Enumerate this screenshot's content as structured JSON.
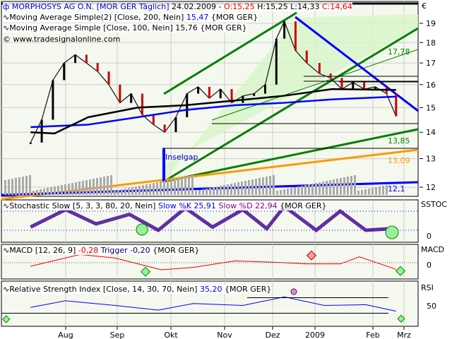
{
  "header": {
    "symbol": "MORPHOSYS AG O.N.",
    "feed": "[MOR GER  Täglich]",
    "date": "24.02.2009",
    "open": "O:15,25",
    "high": "H:15,25",
    "low": "L:14,33",
    "close": "C:14,64",
    "dash": "-"
  },
  "legend": {
    "ma200": {
      "text": "Moving Average Simple(2) [Close, 200, Nein]",
      "value": "15,47",
      "feed": "{MOR GER}"
    },
    "ma100": {
      "text": "Moving Average Simple [Close, 100, Nein]",
      "value": "15,76",
      "feed": "{MOR GER}"
    },
    "copyright": "© www.tradesignalonline.com"
  },
  "annotations": {
    "inselgap": "Inselgap",
    "l1": "17,78",
    "l2": "13,85",
    "l3": "13,09",
    "l4": "12,1"
  },
  "panels": {
    "stoch": {
      "title": "Stochastic Slow [5, 3, 3, 80, 20, Nein]",
      "k": "Slow %K 25,91",
      "d": "Slow %D 22,94",
      "feed": "{MOR GER}",
      "axis": "SSTOC",
      "tick": "0"
    },
    "macd": {
      "title": "MACD [12, 26, 9]",
      "value": "-0,28",
      "trigger": "Trigger -0,20",
      "feed": "{MOR GER}",
      "axis": "MACD",
      "tick": "0"
    },
    "rsi": {
      "title": "Relative Strength Index [Close, 14, 30, 70, Nein]",
      "value": "35,20",
      "feed": "{MOR GER}",
      "axis": "RSI",
      "tick": "50"
    }
  },
  "colors": {
    "up": "#000000",
    "down": "#cc0000",
    "ma200": "#0000ff",
    "ma100": "#000000",
    "channel": "#008000",
    "support": "#ffa500",
    "bg": "#f5f8ee",
    "channelFill": "#d8f5c8"
  },
  "chart_data": {
    "type": "line",
    "currency": "€",
    "y_scale": "log",
    "ylim": [
      11.8,
      20
    ],
    "yticks": [
      "12",
      "13",
      "14",
      "15",
      "16",
      "17",
      "18",
      "19"
    ],
    "xticks": [
      "Aug",
      "Sep",
      "Okt",
      "Nov",
      "Dez",
      "2009",
      "Feb",
      "Mrz"
    ],
    "grid": true,
    "series": [
      {
        "key": "close",
        "points": [
          [
            "2008-07-10",
            13.6
          ],
          [
            "2008-07-17",
            14.5
          ],
          [
            "2008-07-24",
            16.2
          ],
          [
            "2008-07-31",
            17.0
          ],
          [
            "2008-08-07",
            17.4
          ],
          [
            "2008-08-14",
            17.0
          ],
          [
            "2008-08-21",
            16.6
          ],
          [
            "2008-08-28",
            16.0
          ],
          [
            "2008-09-04",
            15.2
          ],
          [
            "2008-09-11",
            15.6
          ],
          [
            "2008-09-18",
            14.7
          ],
          [
            "2008-09-25",
            14.3
          ],
          [
            "2008-10-02",
            14.0
          ],
          [
            "2008-10-09",
            14.6
          ],
          [
            "2008-10-16",
            15.6
          ],
          [
            "2008-10-23",
            15.9
          ],
          [
            "2008-10-30",
            15.4
          ],
          [
            "2008-11-06",
            15.8
          ],
          [
            "2008-11-13",
            15.2
          ],
          [
            "2008-11-20",
            15.5
          ],
          [
            "2008-11-27",
            15.6
          ],
          [
            "2008-12-04",
            16.0
          ],
          [
            "2008-12-11",
            18.2
          ],
          [
            "2008-12-16",
            19.1
          ],
          [
            "2008-12-23",
            17.6
          ],
          [
            "2008-12-30",
            17.0
          ],
          [
            "2009-01-07",
            16.5
          ],
          [
            "2009-01-14",
            16.3
          ],
          [
            "2009-01-21",
            15.8
          ],
          [
            "2009-01-28",
            16.1
          ],
          [
            "2009-02-04",
            15.8
          ],
          [
            "2009-02-11",
            15.9
          ],
          [
            "2009-02-18",
            15.6
          ],
          [
            "2009-02-24",
            14.64
          ]
        ]
      },
      {
        "key": "ma200",
        "points": [
          [
            "2008-07-10",
            14.2
          ],
          [
            "2008-08-15",
            14.3
          ],
          [
            "2008-09-15",
            14.6
          ],
          [
            "2008-10-15",
            14.9
          ],
          [
            "2008-11-15",
            15.1
          ],
          [
            "2008-12-15",
            15.2
          ],
          [
            "2009-01-15",
            15.35
          ],
          [
            "2009-02-24",
            15.47
          ]
        ]
      },
      {
        "key": "ma100",
        "points": [
          [
            "2008-07-10",
            14.0
          ],
          [
            "2008-07-25",
            13.95
          ],
          [
            "2008-08-15",
            14.6
          ],
          [
            "2008-09-15",
            15.0
          ],
          [
            "2008-10-15",
            15.1
          ],
          [
            "2008-11-15",
            15.3
          ],
          [
            "2008-12-15",
            15.5
          ],
          [
            "2009-01-15",
            15.8
          ],
          [
            "2009-02-24",
            15.76
          ]
        ]
      }
    ],
    "stoch": {
      "ylim": [
        0,
        100
      ],
      "k": [
        [
          "2008-07-10",
          30
        ],
        [
          "2008-08-01",
          85
        ],
        [
          "2008-08-20",
          40
        ],
        [
          "2008-09-10",
          70
        ],
        [
          "2008-09-28",
          20
        ],
        [
          "2008-10-15",
          90
        ],
        [
          "2008-11-01",
          30
        ],
        [
          "2008-11-20",
          85
        ],
        [
          "2008-12-05",
          25
        ],
        [
          "2008-12-16",
          95
        ],
        [
          "2009-01-05",
          20
        ],
        [
          "2009-01-20",
          80
        ],
        [
          "2009-02-05",
          20
        ],
        [
          "2009-02-24",
          25.91
        ]
      ],
      "d": 22.94
    },
    "macd": {
      "ylim": [
        -0.6,
        0.6
      ],
      "macd": [
        [
          "2008-07-10",
          -0.15
        ],
        [
          "2008-08-10",
          0.35
        ],
        [
          "2008-09-01",
          0.2
        ],
        [
          "2008-09-30",
          -0.3
        ],
        [
          "2008-10-20",
          -0.2
        ],
        [
          "2008-11-15",
          0.08
        ],
        [
          "2008-12-10",
          0.02
        ],
        [
          "2008-12-30",
          -0.05
        ],
        [
          "2009-01-20",
          -0.05
        ],
        [
          "2009-02-01",
          0.25
        ],
        [
          "2009-02-24",
          -0.28
        ]
      ],
      "trigger": -0.2
    },
    "rsi": {
      "ylim": [
        0,
        100
      ],
      "values": [
        [
          "2008-07-10",
          45
        ],
        [
          "2008-08-01",
          62
        ],
        [
          "2008-09-01",
          50
        ],
        [
          "2008-09-28",
          38
        ],
        [
          "2008-10-20",
          55
        ],
        [
          "2008-11-20",
          50
        ],
        [
          "2008-12-16",
          72
        ],
        [
          "2009-01-10",
          50
        ],
        [
          "2009-02-05",
          52
        ],
        [
          "2009-02-24",
          35.2
        ]
      ]
    }
  }
}
